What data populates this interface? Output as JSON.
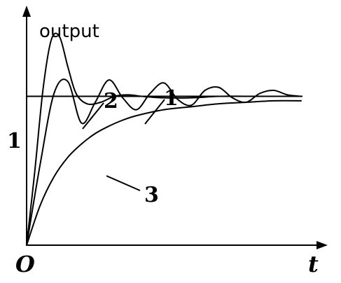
{
  "chart_data": {
    "type": "line",
    "title": "",
    "ylabel": "output",
    "xlabel": "t",
    "origin_label": "O",
    "xlim": [
      0,
      10
    ],
    "ylim": [
      0,
      1.6
    ],
    "reference_line": {
      "y": 1,
      "label": "1"
    },
    "series": [
      {
        "name": "1",
        "x": [
          0,
          0.5,
          1.0,
          1.5,
          2.0,
          2.5,
          3.0,
          3.5,
          4.0,
          4.5,
          5.0,
          5.5,
          6.0,
          6.5,
          7.0,
          7.5,
          8.0,
          8.5,
          9.0,
          9.5,
          10.0
        ],
        "values": [
          0,
          0.55,
          1.02,
          1.1,
          0.82,
          0.96,
          1.11,
          0.99,
          0.91,
          1.02,
          1.09,
          0.98,
          0.94,
          1.04,
          1.06,
          0.99,
          0.96,
          1.02,
          1.04,
          1.01,
          1.0
        ]
      },
      {
        "name": "2",
        "x": [
          0,
          0.3,
          0.6,
          0.9,
          1.2,
          1.5,
          1.8,
          2.2,
          2.7,
          3.2,
          3.7,
          4.2,
          5.0,
          6.0,
          7.0,
          8.0,
          9.0,
          10.0
        ],
        "values": [
          0,
          0.5,
          1.05,
          1.38,
          1.4,
          1.2,
          1.02,
          0.95,
          0.96,
          1.0,
          1.01,
          1.0,
          0.99,
          0.99,
          1.0,
          1.0,
          1.0,
          1.0
        ]
      },
      {
        "name": "3",
        "x": [
          0,
          0.5,
          1.0,
          1.5,
          2.0,
          2.5,
          3.0,
          3.5,
          4.0,
          5.0,
          6.0,
          7.0,
          8.0,
          9.0,
          10.0
        ],
        "values": [
          0,
          0.27,
          0.46,
          0.59,
          0.68,
          0.75,
          0.8,
          0.84,
          0.87,
          0.91,
          0.93,
          0.95,
          0.96,
          0.97,
          0.97
        ]
      }
    ]
  }
}
